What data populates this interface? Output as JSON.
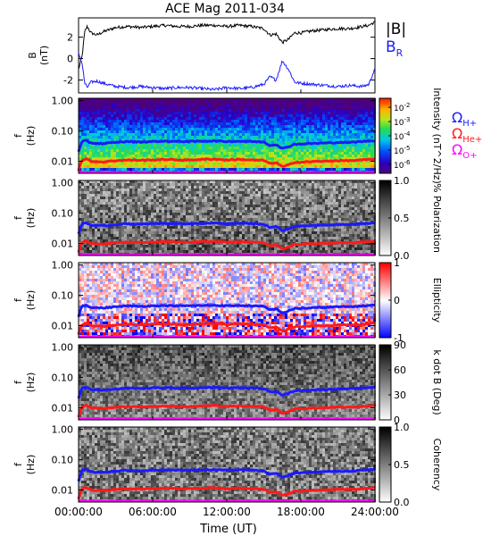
{
  "chart_data": {
    "type": "heatmap",
    "title": "ACE Mag 2011-034",
    "xlabel": "Time (UT)",
    "x_ticks": [
      "00:00:00",
      "06:00:00",
      "12:00:00",
      "18:00:00",
      "24:00:00"
    ],
    "xlim_hours": [
      0,
      24
    ],
    "field_panel": {
      "ylabel": [
        "B",
        "(nT)"
      ],
      "ylim": [
        -3.2,
        3.8
      ],
      "y_ticks": [
        "2",
        "0",
        "-2"
      ],
      "legend": [
        "|B|",
        "B",
        "R"
      ],
      "series": [
        {
          "name": "|B|",
          "color": "#000000",
          "x": [
            0,
            0.3,
            0.5,
            0.7,
            1.0,
            1.5,
            2,
            3,
            4,
            5,
            6,
            7,
            8,
            9,
            10,
            11,
            12,
            13,
            14,
            15,
            15.5,
            16,
            16.5,
            17,
            17.5,
            18,
            19,
            20,
            21,
            22,
            23,
            23.5,
            23.8,
            24
          ],
          "y": [
            -1.0,
            0.3,
            2.5,
            3.0,
            2.4,
            2.2,
            2.5,
            2.9,
            3.0,
            2.9,
            3.0,
            3.1,
            3.0,
            3.0,
            3.1,
            3.1,
            3.0,
            3.1,
            3.0,
            2.8,
            2.2,
            2.3,
            1.5,
            1.8,
            2.4,
            2.4,
            2.6,
            2.7,
            2.8,
            2.8,
            3.0,
            3.1,
            3.3,
            3.4
          ]
        },
        {
          "name": "B_R",
          "color": "#1a1aff",
          "x": [
            0,
            0.3,
            0.5,
            0.7,
            1.0,
            1.5,
            2,
            3,
            4,
            5,
            6,
            7,
            8,
            9,
            10,
            11,
            12,
            13,
            14,
            15,
            15.5,
            16,
            16.5,
            17,
            17.5,
            18,
            19,
            20,
            21,
            22,
            23,
            23.5,
            23.8,
            24
          ],
          "y": [
            0.5,
            -0.5,
            -2.3,
            -2.7,
            -2.2,
            -2.1,
            -2.3,
            -2.6,
            -2.7,
            -2.6,
            -2.7,
            -2.8,
            -2.7,
            -2.7,
            -2.8,
            -2.9,
            -2.7,
            -2.8,
            -2.7,
            -2.4,
            -1.7,
            -2.0,
            -0.2,
            -1.0,
            -2.2,
            -2.3,
            -2.4,
            -2.5,
            -2.6,
            -2.5,
            -2.6,
            -2.4,
            -1.5,
            -1.0
          ]
        }
      ]
    },
    "spectrogram_panels": [
      {
        "id": "intensity",
        "ylabel": [
          "f",
          "(Hz)"
        ],
        "y_ticks": [
          "1.00",
          "0.10",
          "0.01"
        ],
        "colorbar": {
          "scheme": "rainbow",
          "ticks": [
            "10^-2",
            "10^-3",
            "10^-4",
            "10^-5",
            "10^-6"
          ],
          "label": "Intensity (nT^2/Hz)"
        },
        "legend": [
          {
            "symbol": "Ω",
            "sub": "H+",
            "color": "#1a1aff"
          },
          {
            "symbol": "Ω",
            "sub": "He+",
            "color": "#ff1a1a"
          },
          {
            "symbol": "Ω",
            "sub": "O+",
            "color": "#ff00ff"
          }
        ]
      },
      {
        "id": "polarization",
        "ylabel": [
          "f",
          "(Hz)"
        ],
        "y_ticks": [
          "1.00",
          "0.10",
          "0.01"
        ],
        "colorbar": {
          "scheme": "gray",
          "ticks": [
            "1.0",
            "0.5",
            "0.0"
          ],
          "label": "% Polarization"
        }
      },
      {
        "id": "ellipticity",
        "ylabel": [
          "f",
          "(Hz)"
        ],
        "y_ticks": [
          "1.00",
          "0.10",
          "0.01"
        ],
        "colorbar": {
          "scheme": "bwr",
          "ticks": [
            "1",
            "0",
            "-1"
          ],
          "label": "Ellipticity"
        }
      },
      {
        "id": "kdotb",
        "ylabel": [
          "f",
          "(Hz)"
        ],
        "y_ticks": [
          "1.00",
          "0.10",
          "0.01"
        ],
        "colorbar": {
          "scheme": "gray",
          "ticks": [
            "90",
            "60",
            "30",
            "0"
          ],
          "label": "k dot B (Deg)"
        }
      },
      {
        "id": "coherency",
        "ylabel": [
          "f",
          "(Hz)"
        ],
        "y_ticks": [
          "1.00",
          "0.10",
          "0.01"
        ],
        "colorbar": {
          "scheme": "gray",
          "ticks": [
            "1.0",
            "0.5",
            "0.0"
          ],
          "label": "Coherency"
        }
      }
    ],
    "gyrofrequency_lines": {
      "x": [
        0,
        0.3,
        0.6,
        1,
        2,
        3,
        4,
        5,
        6,
        7,
        8,
        9,
        10,
        11,
        12,
        13,
        14,
        15,
        15.5,
        16,
        16.5,
        17,
        17.5,
        18,
        19,
        20,
        21,
        22,
        23,
        24
      ],
      "H+": [
        0.02,
        0.045,
        0.048,
        0.04,
        0.038,
        0.042,
        0.045,
        0.043,
        0.045,
        0.046,
        0.045,
        0.045,
        0.046,
        0.047,
        0.045,
        0.046,
        0.045,
        0.043,
        0.033,
        0.036,
        0.026,
        0.03,
        0.037,
        0.037,
        0.039,
        0.04,
        0.042,
        0.042,
        0.045,
        0.048
      ],
      "He+": [
        0.005,
        0.011,
        0.012,
        0.01,
        0.0095,
        0.0105,
        0.011,
        0.0108,
        0.011,
        0.0115,
        0.011,
        0.011,
        0.0115,
        0.0118,
        0.011,
        0.0115,
        0.011,
        0.0107,
        0.0083,
        0.009,
        0.0065,
        0.0075,
        0.0093,
        0.0093,
        0.0098,
        0.01,
        0.0105,
        0.0105,
        0.011,
        0.012
      ],
      "O+": [
        0.0013,
        0.0028,
        0.003,
        0.0025,
        0.0024,
        0.0026,
        0.0028,
        0.0027,
        0.0028,
        0.0029,
        0.0028,
        0.0028,
        0.0029,
        0.003,
        0.0028,
        0.0029,
        0.0028,
        0.0027,
        0.0021,
        0.0023,
        0.0016,
        0.0019,
        0.0023,
        0.0023,
        0.0025,
        0.0025,
        0.0026,
        0.0026,
        0.0028,
        0.003
      ],
      "ylim_hz": [
        0.004,
        1.2
      ]
    }
  }
}
